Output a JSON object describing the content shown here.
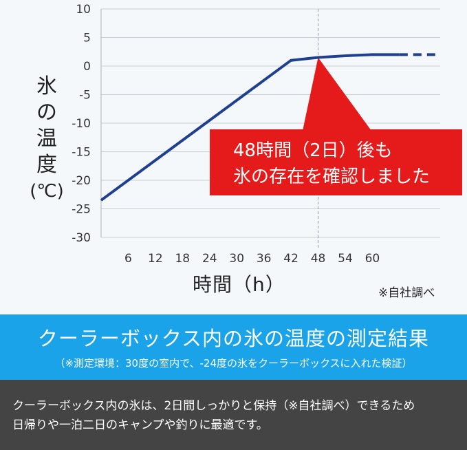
{
  "chart_data": {
    "type": "line",
    "xlabel": "時間（h）",
    "ylabel": "氷の温度(℃)",
    "ylabel_chars": [
      "氷",
      "の",
      "温",
      "度",
      "(℃)"
    ],
    "x_ticks": [
      6,
      12,
      18,
      24,
      30,
      36,
      42,
      48,
      54,
      60
    ],
    "y_ticks": [
      10,
      5,
      0,
      -5,
      -10,
      -15,
      -20,
      -25,
      -30
    ],
    "xlim": [
      0,
      75
    ],
    "ylim": [
      -30,
      10
    ],
    "grid": true,
    "series": [
      {
        "x": [
          0,
          42,
          48,
          54,
          60,
          66
        ],
        "y": [
          -23.5,
          1,
          1.5,
          1.8,
          2,
          2
        ],
        "color": "#1f3f8f"
      }
    ],
    "extension_dashed": {
      "x": [
        66,
        74
      ],
      "y": [
        2,
        2
      ]
    },
    "reference_line_x": 48,
    "annotation": {
      "line1": "48時間（2日）後も",
      "line2": "氷の存在を確認しました",
      "color": "#e51a1a"
    },
    "source_note": "※自社調べ"
  },
  "banner": {
    "title": "クーラーボックス内の氷の温度の測定結果",
    "subtitle": "（※測定環境：30度の室内で、-24度の氷をクーラーボックスに入れた検証）",
    "color": "#1aa3e8"
  },
  "footer": {
    "line1": "クーラーボックス内の氷は、2日間しっかりと保持（※自社調べ）できるため",
    "line2": "日帰りや一泊二日のキャンプや釣りに最適です。"
  }
}
